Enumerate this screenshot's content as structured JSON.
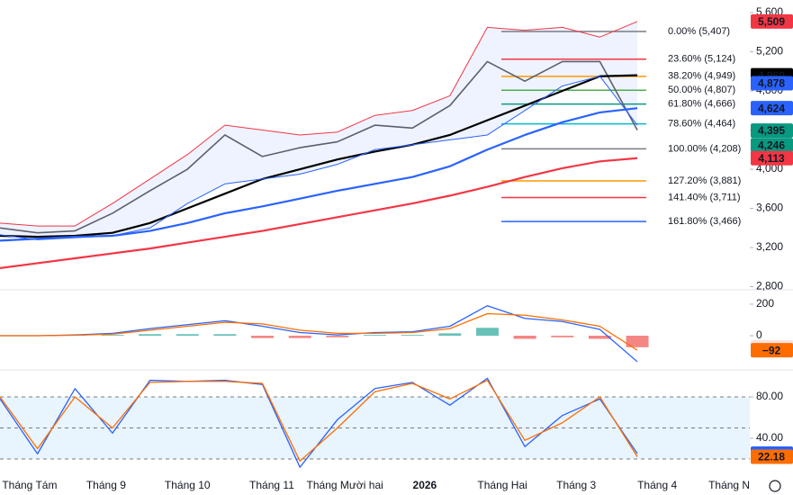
{
  "chart_data": [
    {
      "type": "line",
      "x": [
        0,
        1,
        2,
        3,
        4,
        5,
        6,
        7,
        8,
        9,
        10,
        11,
        12,
        13,
        14,
        15,
        16,
        17
      ],
      "xlim": [
        0,
        20
      ],
      "ylim": [
        2768,
        5729
      ],
      "yticks": [
        {
          "value": 5600,
          "label": "5,600"
        },
        {
          "value": 5200,
          "label": "5,200"
        },
        {
          "value": 4800,
          "label": "4,800"
        },
        {
          "value": 4400,
          "label": "4,400"
        },
        {
          "value": 4000,
          "label": "4,000"
        },
        {
          "value": 3600,
          "label": "3,600"
        },
        {
          "value": 3200,
          "label": "3,200"
        },
        {
          "value": 2800,
          "label": "2,800"
        }
      ],
      "series": [
        {
          "color": "#5d606b",
          "width": 1.6,
          "values": [
            3400,
            3350,
            3370,
            3550,
            3780,
            4000,
            4350,
            4130,
            4220,
            4280,
            4450,
            4420,
            4650,
            5100,
            4900,
            5100,
            5100,
            4400
          ]
        },
        {
          "color": "#000000",
          "width": 2.2,
          "values": [
            3320,
            3310,
            3320,
            3350,
            3450,
            3600,
            3750,
            3900,
            4000,
            4100,
            4180,
            4250,
            4350,
            4500,
            4650,
            4800,
            4950,
            4960
          ]
        },
        {
          "color": "#2962ff",
          "width": 2.2,
          "values": [
            3270,
            3290,
            3310,
            3320,
            3370,
            3450,
            3550,
            3620,
            3700,
            3780,
            3850,
            3920,
            4030,
            4200,
            4350,
            4480,
            4580,
            4624
          ]
        },
        {
          "color": "#f23645",
          "width": 2.2,
          "values": [
            2990,
            3040,
            3090,
            3140,
            3190,
            3250,
            3310,
            3370,
            3440,
            3510,
            3580,
            3650,
            3730,
            3820,
            3920,
            4010,
            4080,
            4113
          ]
        },
        {
          "color": "#f23645",
          "width": 1,
          "values": [
            3450,
            3420,
            3420,
            3650,
            3900,
            4150,
            4450,
            4400,
            4350,
            4380,
            4550,
            4600,
            4750,
            5450,
            5420,
            5450,
            5350,
            5509
          ]
        },
        {
          "color": "#2962ff",
          "width": 1,
          "values": [
            3330,
            3280,
            3300,
            3320,
            3400,
            3650,
            3850,
            3900,
            3950,
            4050,
            4200,
            4250,
            4300,
            4350,
            4600,
            4850,
            4950,
            4450
          ]
        }
      ],
      "fill_between": {
        "series": [
          4,
          5
        ],
        "color": "rgba(41,98,255,0.08)"
      },
      "fib_levels": [
        {
          "label": "0.00% (5,407)",
          "value": 5407,
          "color": "#787b86"
        },
        {
          "label": "23.60% (5,124)",
          "value": 5124,
          "color": "#f23645"
        },
        {
          "label": "38.20% (4,949)",
          "value": 4949,
          "color": "#ff9800"
        },
        {
          "label": "50.00% (4,807)",
          "value": 4807,
          "color": "#4caf50"
        },
        {
          "label": "61.80% (4,666)",
          "value": 4666,
          "color": "#089981"
        },
        {
          "label": "78.60% (4,464)",
          "value": 4464,
          "color": "#00bcd4"
        },
        {
          "label": "100.00% (4,208)",
          "value": 4208,
          "color": "#787b86"
        },
        {
          "label": "127.20% (3,881)",
          "value": 3881,
          "color": "#ff9800"
        },
        {
          "label": "141.40% (3,711)",
          "value": 3711,
          "color": "#f23645"
        },
        {
          "label": "161.80% (3,466)",
          "value": 3466,
          "color": "#2962ff"
        }
      ],
      "price_labels": [
        {
          "value": 5509,
          "label": "5,509",
          "color": "#f23645"
        },
        {
          "value": 4960,
          "label": "4,960",
          "color": "#000000"
        },
        {
          "value": 4878,
          "label": "4,878",
          "color": "#2962ff"
        },
        {
          "value": 4624,
          "label": "4,624",
          "color": "#2962ff"
        },
        {
          "value": 4395,
          "label": "4,395",
          "color": "#089981"
        },
        {
          "value": 4246,
          "label": "4,246",
          "color": "#089981"
        },
        {
          "value": 4113,
          "label": "4,113",
          "color": "#f23645"
        }
      ]
    },
    {
      "type": "macd",
      "x": [
        0,
        1,
        2,
        3,
        4,
        5,
        6,
        7,
        8,
        9,
        10,
        11,
        12,
        13,
        14,
        15,
        16,
        17
      ],
      "xlim": [
        0,
        20
      ],
      "ylim": [
        -211,
        291
      ],
      "yticks": [
        200,
        0
      ],
      "series": [
        {
          "color": "#2962ff",
          "width": 1.3,
          "values": [
            0,
            0,
            5,
            15,
            45,
            70,
            95,
            60,
            20,
            5,
            20,
            25,
            60,
            190,
            110,
            90,
            40,
            -165
          ]
        },
        {
          "color": "#ff6d00",
          "width": 1.3,
          "values": [
            0,
            0,
            3,
            10,
            35,
            60,
            85,
            75,
            35,
            15,
            15,
            20,
            45,
            140,
            130,
            100,
            60,
            -92
          ]
        }
      ],
      "histogram": [
        0,
        0,
        2,
        5,
        10,
        10,
        10,
        -15,
        -15,
        -10,
        5,
        5,
        15,
        50,
        -20,
        -10,
        -20,
        -73
      ],
      "hist_colors": [
        "#26a69a",
        "#ef5350"
      ],
      "price_labels": [
        {
          "value": -73,
          "label": "−73",
          "color": "#fde2e4"
        },
        {
          "value": -92,
          "label": "−92",
          "color": "#ff6d00"
        }
      ]
    },
    {
      "type": "line",
      "x": [
        0,
        1,
        2,
        3,
        4,
        5,
        6,
        7,
        8,
        9,
        10,
        11,
        12,
        13,
        14,
        15,
        16,
        17
      ],
      "xlim": [
        0,
        20
      ],
      "ylim": [
        11.3,
        105.2
      ],
      "yticks": [
        {
          "value": 80,
          "label": "80.00"
        },
        {
          "value": 40,
          "label": "40.00"
        }
      ],
      "band": [
        20,
        80
      ],
      "band_color": "rgba(33,150,243,0.1)",
      "levels": [
        80,
        50,
        20
      ],
      "series": [
        {
          "color": "#2962ff",
          "width": 1.3,
          "values": [
            78,
            25,
            88,
            45,
            96,
            95,
            96,
            92,
            12,
            58,
            88,
            94,
            72,
            98,
            32,
            62,
            78,
            25.22
          ]
        },
        {
          "color": "#ff6d00",
          "width": 1.3,
          "values": [
            80,
            30,
            80,
            50,
            94,
            95,
            95,
            93,
            18,
            50,
            85,
            93,
            78,
            96,
            38,
            55,
            80,
            22.18
          ]
        }
      ],
      "price_labels": [
        {
          "value": 25.22,
          "label": "25.22",
          "color": "#2962ff"
        },
        {
          "value": 22.18,
          "label": "22.18",
          "color": "#ff6d00"
        }
      ],
      "xticks": [
        {
          "value": 0.79,
          "label": "Tháng Tám"
        },
        {
          "value": 2.83,
          "label": "Tháng 9"
        },
        {
          "value": 5.0,
          "label": "Tháng 10"
        },
        {
          "value": 7.25,
          "label": "Tháng 11"
        },
        {
          "value": 9.2,
          "label": "Tháng Mười hai"
        },
        {
          "value": 11.33,
          "label": "2026"
        },
        {
          "value": 13.4,
          "label": "Tháng Hai"
        },
        {
          "value": 15.37,
          "label": "Tháng 3"
        },
        {
          "value": 17.53,
          "label": "Tháng 4"
        },
        {
          "value": 19.45,
          "label": "Tháng N"
        }
      ]
    }
  ]
}
